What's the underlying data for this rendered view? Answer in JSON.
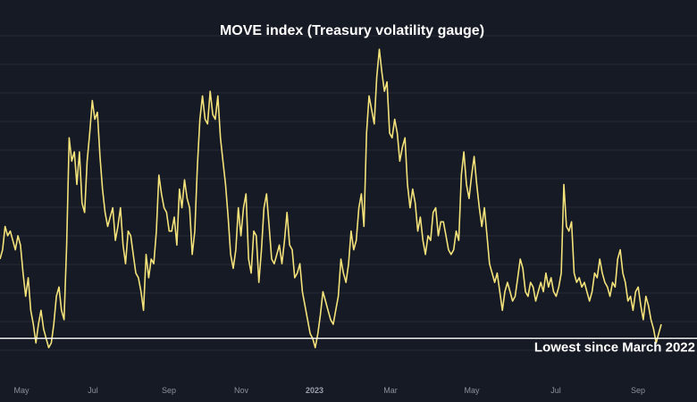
{
  "chart_data": {
    "type": "line",
    "title": "MOVE index (Treasury volatility gauge)",
    "xlabel": "",
    "ylabel": "",
    "ylim": [
      72,
      210
    ],
    "grid": true,
    "x_ticks": [
      "May",
      "Jul",
      "Sep",
      "Nov",
      "2023",
      "Mar",
      "May",
      "Jul",
      "Sep"
    ],
    "series": [
      {
        "values": [
          118,
          122,
          132,
          128,
          130,
          126,
          122,
          128,
          124,
          112,
          102,
          110,
          96,
          90,
          82,
          90,
          96,
          88,
          84,
          80,
          82,
          90,
          102,
          106,
          96,
          92,
          124,
          170,
          160,
          164,
          150,
          164,
          142,
          138,
          160,
          172,
          186,
          178,
          181,
          162,
          148,
          138,
          132,
          136,
          140,
          126,
          132,
          140,
          124,
          116,
          130,
          128,
          120,
          112,
          110,
          104,
          96,
          120,
          110,
          118,
          116,
          130,
          154,
          146,
          140,
          138,
          130,
          130,
          136,
          124,
          148,
          140,
          152,
          144,
          140,
          120,
          130,
          158,
          178,
          188,
          178,
          176,
          190,
          180,
          178,
          188,
          170,
          160,
          150,
          136,
          120,
          114,
          122,
          140,
          128,
          140,
          146,
          118,
          112,
          130,
          128,
          108,
          122,
          140,
          146,
          132,
          118,
          116,
          120,
          124,
          116,
          126,
          138,
          124,
          122,
          110,
          112,
          116,
          104,
          98,
          92,
          86,
          84,
          80,
          86,
          94,
          104,
          100,
          96,
          92,
          90,
          96,
          102,
          118,
          112,
          108,
          116,
          130,
          122,
          126,
          140,
          146,
          132,
          172,
          188,
          182,
          176,
          196,
          208,
          198,
          190,
          194,
          172,
          170,
          178,
          172,
          160,
          166,
          170,
          150,
          140,
          148,
          142,
          130,
          136,
          126,
          120,
          128,
          126,
          138,
          140,
          128,
          134,
          134,
          128,
          122,
          120,
          122,
          130,
          126,
          154,
          164,
          150,
          144,
          154,
          162,
          150,
          140,
          132,
          140,
          128,
          116,
          112,
          108,
          112,
          104,
          96,
          104,
          108,
          104,
          100,
          102,
          110,
          118,
          114,
          104,
          102,
          108,
          106,
          100,
          104,
          108,
          104,
          112,
          106,
          110,
          104,
          102,
          106,
          112,
          150,
          132,
          130,
          134,
          112,
          108,
          110,
          106,
          108,
          104,
          100,
          104,
          112,
          110,
          118,
          112,
          108,
          106,
          102,
          108,
          106,
          118,
          122,
          112,
          108,
          100,
          102,
          96,
          104,
          106,
          98,
          92,
          102,
          98,
          92,
          88,
          82,
          86,
          90
        ]
      }
    ],
    "annotations": [
      {
        "text": "Lowest since March 2022",
        "y": 84
      }
    ]
  }
}
